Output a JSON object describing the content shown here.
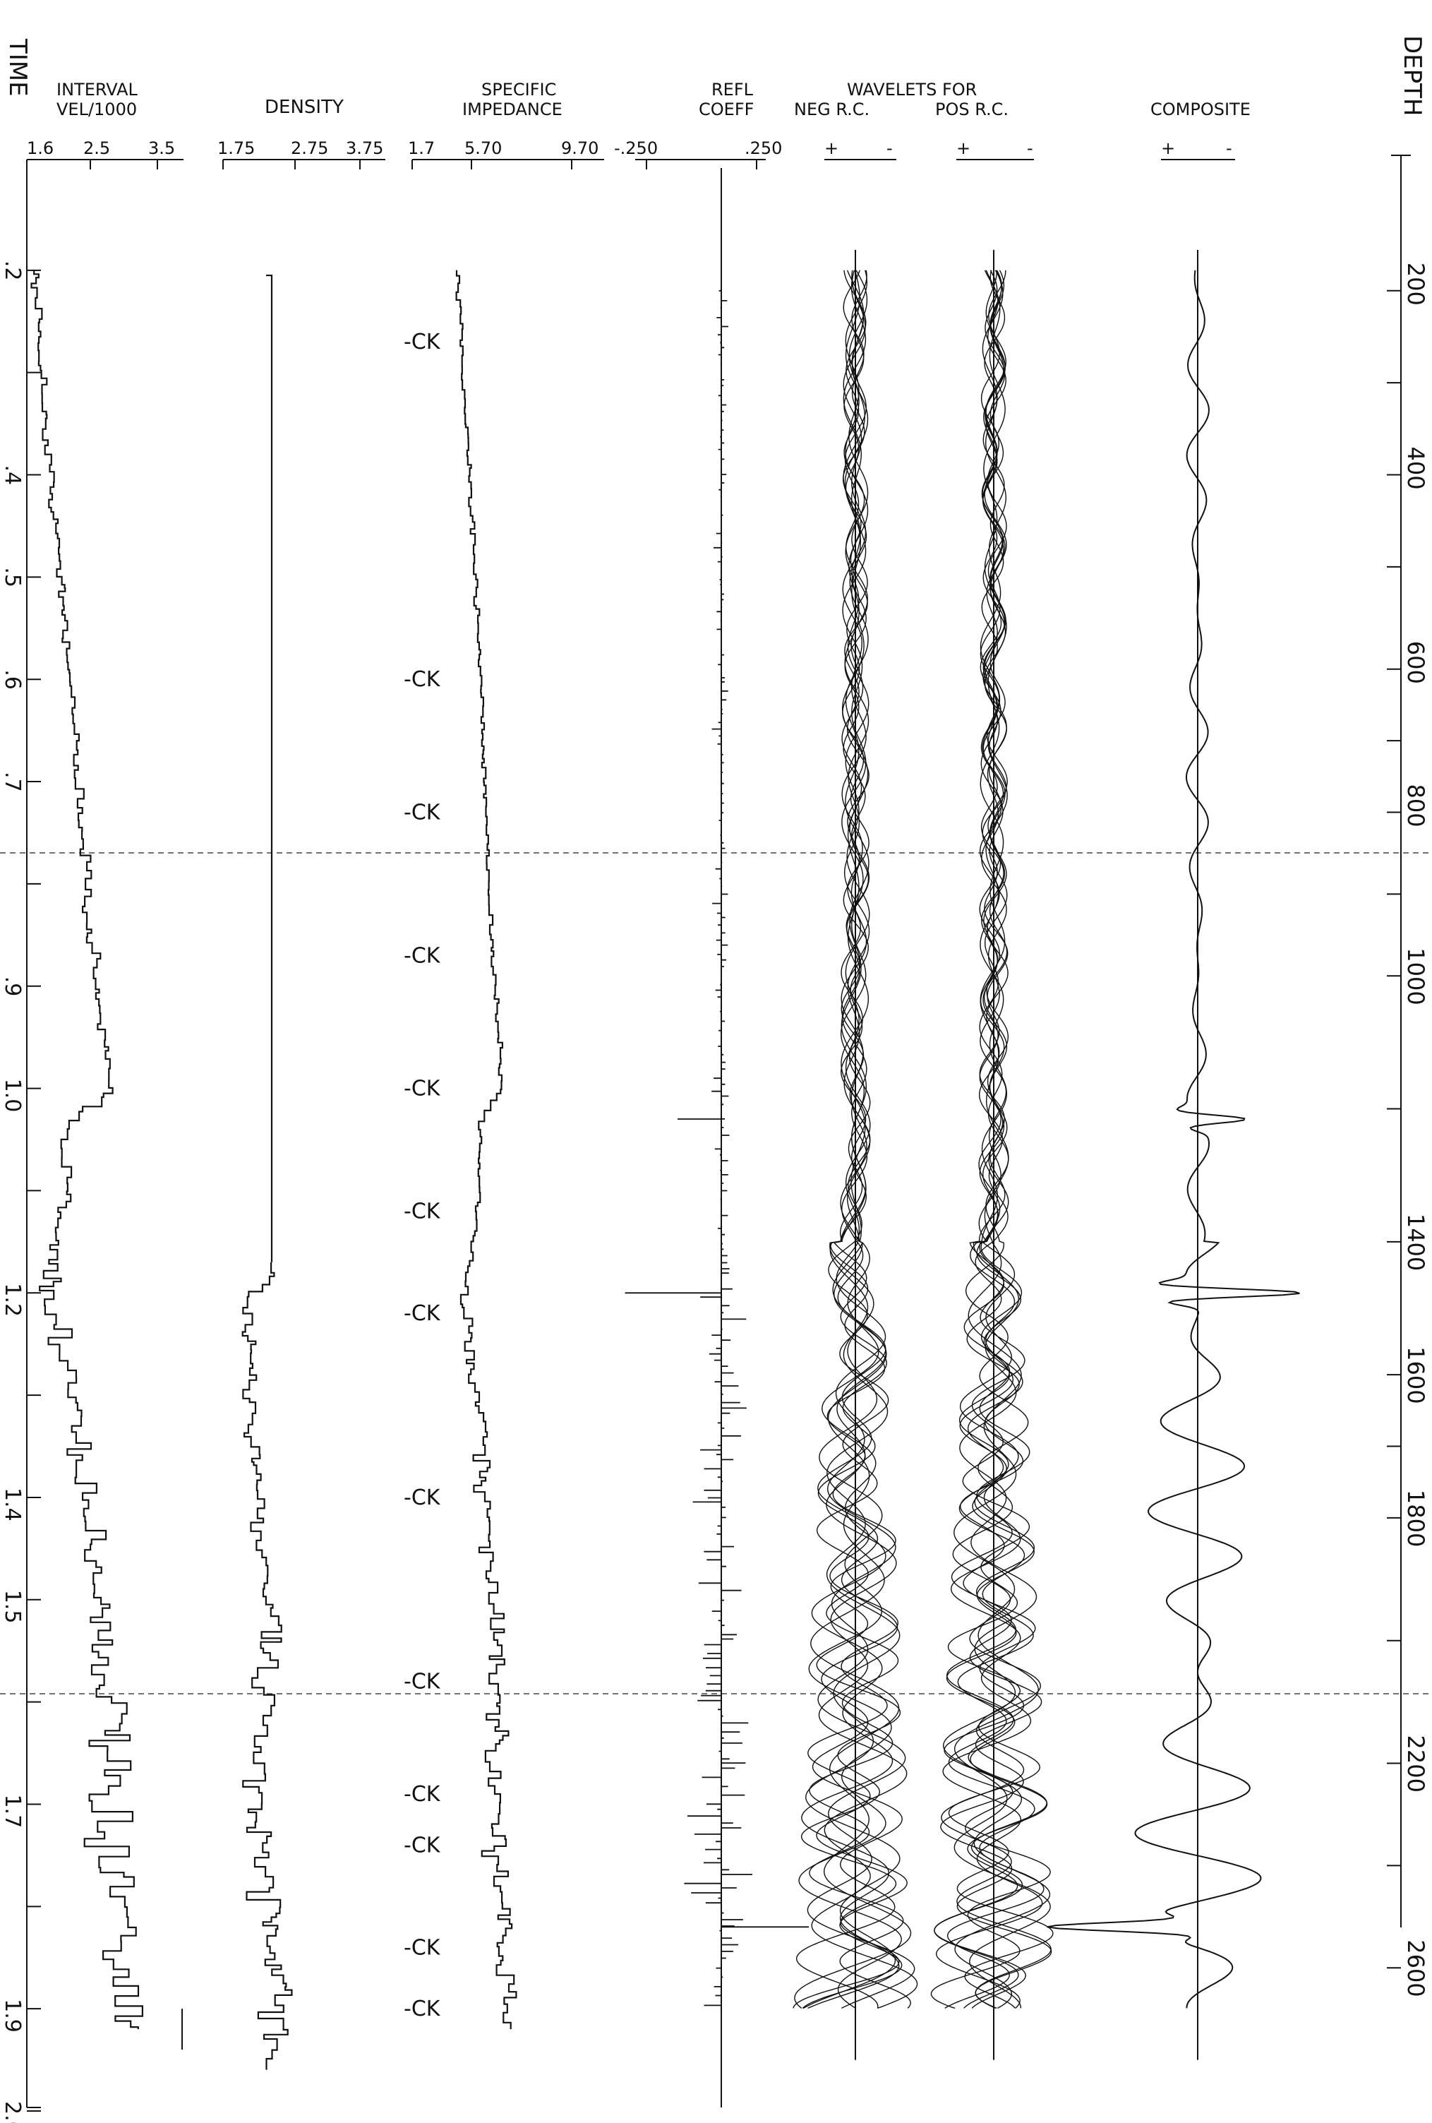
{
  "chart_data": {
    "type": "line",
    "left_axis": {
      "title": "TIME",
      "ticks": [
        ".2",
        ".3",
        ".4",
        ".5",
        ".6",
        ".7",
        ".8",
        ".9",
        "1.0",
        "1.1",
        "1.2",
        "1.3",
        "1.4",
        "1.5",
        "1.6",
        "1.7",
        "1.8",
        "1.9",
        "2.0"
      ],
      "labeled_ticks": [
        ".2",
        ".4",
        ".5",
        ".6",
        ".7",
        ".9",
        "1.0",
        "1.2",
        "1.4",
        "1.5",
        "1.7",
        "1.9",
        "2.0"
      ],
      "ylim": [
        0.1,
        2.0
      ]
    },
    "right_axis": {
      "title": "DEPTH",
      "ticks": [
        "200",
        "400",
        "600",
        "800",
        "1000",
        "1400",
        "1600",
        "1800",
        "2200",
        "2600"
      ]
    },
    "tracks": [
      {
        "title": "INTERVAL VEL/1000",
        "scale": [
          "1.6",
          "2.5",
          "3.5"
        ],
        "xlim": [
          1.6,
          4.6
        ]
      },
      {
        "title": "DENSITY",
        "scale": [
          "1.75",
          "2.75",
          "3.75"
        ],
        "xlim": [
          1.75,
          3.75
        ]
      },
      {
        "title": "SPECIFIC IMPEDANCE",
        "scale": [
          "1.7",
          "5.70",
          "9.70"
        ],
        "xlim": [
          1.7,
          13.7
        ]
      },
      {
        "title": "REFL COEFF",
        "scale": [
          "-.250",
          ".250"
        ],
        "xlim": [
          -0.25,
          0.25
        ]
      },
      {
        "title": "WAVELETS FOR",
        "subtitles": [
          "NEG R.C.",
          "POS R.C."
        ],
        "polarity": [
          "+",
          "-"
        ]
      },
      {
        "title": "COMPOSITE",
        "polarity": [
          "+",
          "-"
        ]
      }
    ],
    "ck_label": "-CK",
    "ck_times": [
      0.27,
      0.6,
      0.73,
      0.87,
      1.0,
      1.12,
      1.22,
      1.4,
      1.58,
      1.69,
      1.74,
      1.84,
      1.9
    ],
    "velocity_series": [
      {
        "t": 0.2,
        "v": 1.75
      },
      {
        "t": 0.3,
        "v": 1.9
      },
      {
        "t": 0.4,
        "v": 2.05
      },
      {
        "t": 0.5,
        "v": 2.25
      },
      {
        "t": 0.6,
        "v": 2.45
      },
      {
        "t": 0.7,
        "v": 2.6
      },
      {
        "t": 0.8,
        "v": 2.75
      },
      {
        "t": 0.9,
        "v": 2.95
      },
      {
        "t": 1.0,
        "v": 3.2
      },
      {
        "t": 1.03,
        "v": 2.3
      },
      {
        "t": 1.1,
        "v": 2.35
      },
      {
        "t": 1.2,
        "v": 2.0
      },
      {
        "t": 1.3,
        "v": 2.5
      },
      {
        "t": 1.4,
        "v": 2.8
      },
      {
        "t": 1.5,
        "v": 3.0
      },
      {
        "t": 1.6,
        "v": 3.2
      },
      {
        "t": 1.7,
        "v": 3.0
      },
      {
        "t": 1.8,
        "v": 3.6
      },
      {
        "t": 1.85,
        "v": 3.2
      },
      {
        "t": 1.9,
        "v": 3.5
      }
    ],
    "density_series": [
      {
        "t": 0.2,
        "d": 2.35
      },
      {
        "t": 1.18,
        "d": 2.35
      },
      {
        "t": 1.2,
        "d": 2.05
      },
      {
        "t": 1.3,
        "d": 2.1
      },
      {
        "t": 1.4,
        "d": 2.2
      },
      {
        "t": 1.5,
        "d": 2.3
      },
      {
        "t": 1.6,
        "d": 2.3
      },
      {
        "t": 1.7,
        "d": 2.15
      },
      {
        "t": 1.8,
        "d": 2.35
      },
      {
        "t": 1.9,
        "d": 2.4
      }
    ],
    "impedance_series": [
      {
        "t": 0.2,
        "z": 4.5
      },
      {
        "t": 0.3,
        "z": 4.9
      },
      {
        "t": 0.4,
        "z": 5.3
      },
      {
        "t": 0.5,
        "z": 5.7
      },
      {
        "t": 0.6,
        "z": 6.0
      },
      {
        "t": 0.7,
        "z": 6.2
      },
      {
        "t": 0.8,
        "z": 6.5
      },
      {
        "t": 0.9,
        "z": 6.9
      },
      {
        "t": 1.0,
        "z": 7.3
      },
      {
        "t": 1.03,
        "z": 5.9
      },
      {
        "t": 1.1,
        "z": 5.9
      },
      {
        "t": 1.2,
        "z": 5.0
      },
      {
        "t": 1.3,
        "z": 5.7
      },
      {
        "t": 1.4,
        "z": 6.3
      },
      {
        "t": 1.5,
        "z": 6.8
      },
      {
        "t": 1.6,
        "z": 7.0
      },
      {
        "t": 1.7,
        "z": 6.5
      },
      {
        "t": 1.8,
        "z": 7.8
      },
      {
        "t": 1.85,
        "z": 7.2
      },
      {
        "t": 1.9,
        "z": 8.0
      }
    ],
    "major_events": [
      {
        "t": 1.03,
        "rc": -0.1
      },
      {
        "t": 1.2,
        "rc": -0.22
      },
      {
        "t": 1.82,
        "rc": 0.2
      }
    ]
  }
}
